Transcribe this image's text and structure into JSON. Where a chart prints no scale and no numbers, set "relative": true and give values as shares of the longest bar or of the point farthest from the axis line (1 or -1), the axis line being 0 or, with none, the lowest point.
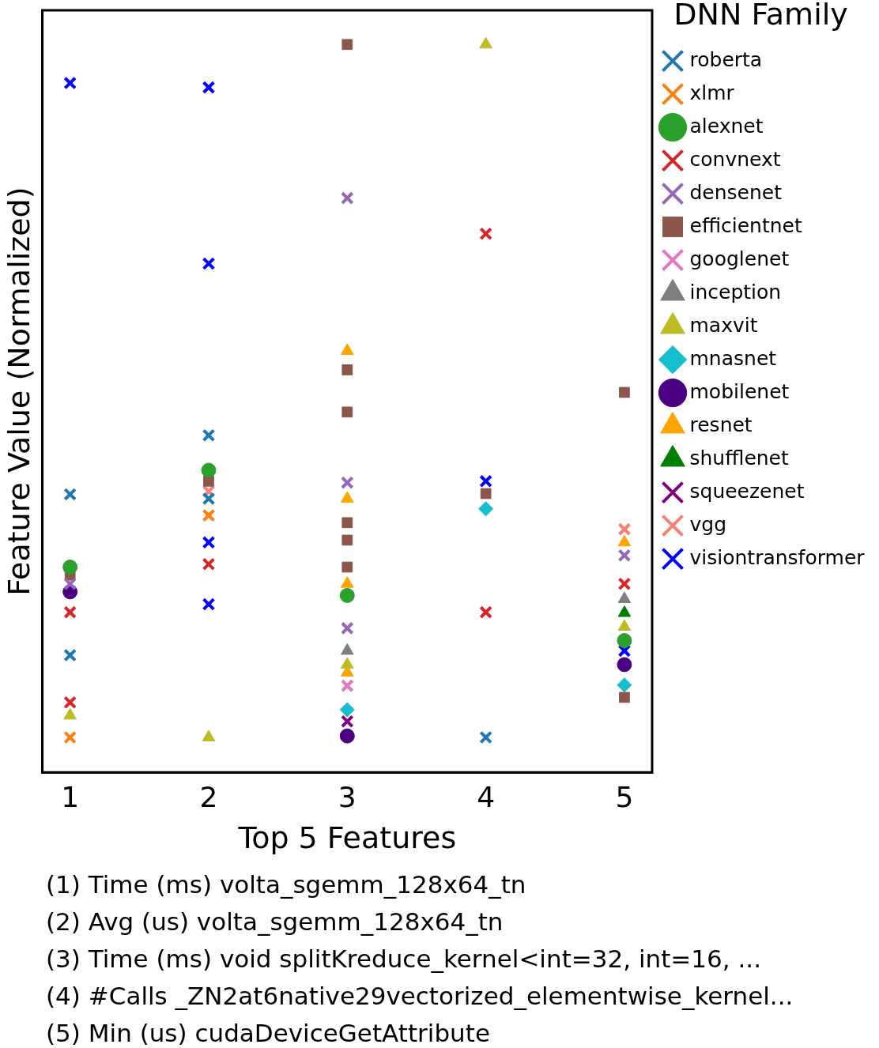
{
  "chart_data": {
    "type": "scatter",
    "relative": true,
    "xlabel": "Top 5 Features",
    "ylabel": "Feature Value (Normalized)",
    "legend_title": "DNN Family",
    "legend": "right",
    "grid": false,
    "xlim": [
      0.8,
      5.2
    ],
    "xticks": [
      1,
      2,
      3,
      4,
      5
    ],
    "annotations": [
      "(1) Time (ms) volta_sgemm_128x64_tn",
      "(2) Avg (us) volta_sgemm_128x64_tn",
      "(3) Time (ms) void splitKreduce_kernel<int=32, int=16, ...",
      "(4) #Calls _ZN2at6native29vectorized_elementwise_kernel...",
      "(5) Min (us) cudaDeviceGetAttribute"
    ],
    "series": [
      {
        "name": "roberta",
        "color": "#1f77b4",
        "marker": "cross",
        "x": [
          1,
          1,
          2,
          2,
          4
        ],
        "values": [
          0.382,
          0.161,
          0.463,
          0.376,
          0.048
        ]
      },
      {
        "name": "xlmr",
        "color": "#ff7f0e",
        "marker": "cross",
        "x": [
          1,
          2
        ],
        "values": [
          0.048,
          0.353
        ]
      },
      {
        "name": "alexnet",
        "color": "#2ca02c",
        "marker": "circle",
        "x": [
          1,
          2,
          3,
          5
        ],
        "values": [
          0.282,
          0.415,
          0.243,
          0.181
        ]
      },
      {
        "name": "convnext",
        "color": "#d62728",
        "marker": "cross",
        "x": [
          1,
          1,
          2,
          4,
          4,
          5
        ],
        "values": [
          0.22,
          0.096,
          0.286,
          0.74,
          0.22,
          0.259
        ]
      },
      {
        "name": "densenet",
        "color": "#9467bd",
        "marker": "cross",
        "x": [
          1,
          3,
          3,
          3,
          5
        ],
        "values": [
          0.259,
          0.789,
          0.398,
          0.198,
          0.298
        ]
      },
      {
        "name": "efficientnet",
        "color": "#8c564b",
        "marker": "square",
        "x": [
          1,
          2,
          3,
          3,
          3,
          3,
          3,
          3,
          4,
          5,
          5
        ],
        "values": [
          0.271,
          0.4,
          1,
          0.553,
          0.495,
          0.343,
          0.319,
          0.282,
          0.383,
          0.522,
          0.103
        ]
      },
      {
        "name": "googlenet",
        "color": "#e377c2",
        "marker": "cross",
        "x": [
          3
        ],
        "values": [
          0.119
        ]
      },
      {
        "name": "inception",
        "color": "#7f7f7f",
        "marker": "triangle",
        "x": [
          3,
          5
        ],
        "values": [
          0.167,
          0.238
        ]
      },
      {
        "name": "maxvit",
        "color": "#bcbd22",
        "marker": "triangle",
        "x": [
          1,
          2,
          3,
          4,
          5
        ],
        "values": [
          0.078,
          0.048,
          0.148,
          1,
          0.2
        ]
      },
      {
        "name": "mnasnet",
        "color": "#17becf",
        "marker": "diamond",
        "x": [
          3,
          4,
          5
        ],
        "values": [
          0.086,
          0.362,
          0.12
        ]
      },
      {
        "name": "mobilenet",
        "color": "#4b0082",
        "marker": "circle",
        "x": [
          1,
          3,
          5
        ],
        "values": [
          0.248,
          0.05,
          0.148
        ]
      },
      {
        "name": "resnet",
        "color": "#ffa500",
        "marker": "triangle",
        "x": [
          3,
          3,
          3,
          3,
          5
        ],
        "values": [
          0.579,
          0.376,
          0.137,
          0.259,
          0.316
        ]
      },
      {
        "name": "shufflenet",
        "color": "#008000",
        "marker": "triangle",
        "x": [
          5
        ],
        "values": [
          0.219
        ]
      },
      {
        "name": "squeezenet",
        "color": "#800080",
        "marker": "cross",
        "x": [
          3
        ],
        "values": [
          0.07
        ]
      },
      {
        "name": "vgg",
        "color": "#fa8072",
        "marker": "cross",
        "x": [
          2,
          5
        ],
        "values": [
          0.386,
          0.334
        ]
      },
      {
        "name": "visiontransformer",
        "color": "#0000ff",
        "marker": "cross",
        "x": [
          1,
          2,
          2,
          2,
          2,
          4,
          5
        ],
        "values": [
          0.947,
          0.941,
          0.699,
          0.316,
          0.231,
          0.4,
          0.167
        ]
      }
    ]
  }
}
